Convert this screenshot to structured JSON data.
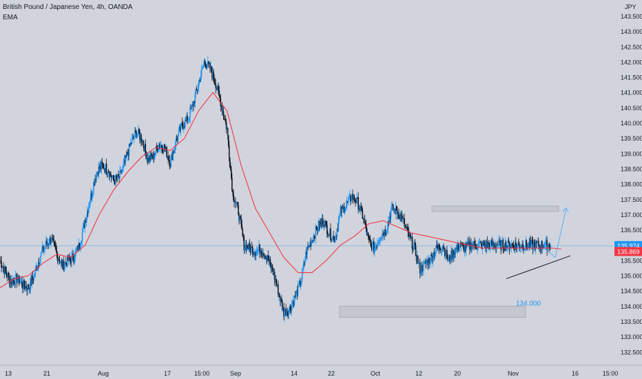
{
  "header": {
    "title": "British Pound / Japanese Yen, 4h, OANDA",
    "indicator": "EMA"
  },
  "axis": {
    "currency": "JPY",
    "y_ticks": [
      "132.500",
      "133.000",
      "133.500",
      "134.000",
      "134.500",
      "135.000",
      "135.500",
      "136.000",
      "136.500",
      "137.000",
      "137.500",
      "138.000",
      "138.500",
      "139.000",
      "139.500",
      "140.000",
      "140.500",
      "141.000",
      "141.500",
      "142.000",
      "142.500",
      "143.000",
      "143.500"
    ],
    "x_ticks": [
      "13",
      "21",
      "Aug",
      "17",
      "15:00",
      "Sep",
      "14",
      "22",
      "Oct",
      "12",
      "20",
      "Nov",
      "16",
      "15:00"
    ]
  },
  "price_labels": {
    "current": "135.974",
    "ema": "135.869"
  },
  "annotations": {
    "support_zone_label": "134.000"
  },
  "colors": {
    "up": "#2196f3",
    "down": "#131722",
    "ema": "#f23645",
    "current_bg": "#2196f3",
    "ema_bg": "#f23645",
    "arrow": "#5ab0ff",
    "zone_fill": "#c2c5cd"
  },
  "chart_data": {
    "type": "line",
    "title": "British Pound / Japanese Yen, 4h, OANDA",
    "series": [
      {
        "name": "",
        "x_index": [
          0,
          8,
          16,
          24,
          32,
          40,
          48,
          56,
          64,
          72,
          80,
          88,
          96,
          104,
          112,
          120,
          128,
          136,
          144,
          152,
          160,
          168,
          176,
          184,
          192,
          200,
          208,
          216,
          224,
          232,
          240,
          248,
          256,
          264,
          272,
          280,
          288,
          296,
          304,
          312,
          320,
          328,
          336,
          344,
          352,
          360,
          368,
          376,
          384,
          392,
          400,
          408,
          416,
          424,
          432,
          440,
          448,
          456,
          464,
          472,
          480,
          488,
          496,
          504,
          512,
          520,
          528,
          536,
          544,
          552,
          560,
          568,
          576,
          584,
          592,
          600,
          608,
          616,
          624,
          632,
          640,
          648,
          656,
          664,
          672,
          680,
          688,
          696,
          704,
          712,
          720,
          728,
          736,
          744,
          752,
          760,
          768,
          776,
          784,
          792
        ],
        "values": [
          135.5,
          135.1,
          134.8,
          134.9,
          134.7,
          134.6,
          135.0,
          135.6,
          136.0,
          136.2,
          135.7,
          135.3,
          135.5,
          135.6,
          136.0,
          136.8,
          137.6,
          138.4,
          138.6,
          138.5,
          138.1,
          138.2,
          138.7,
          139.3,
          139.7,
          139.5,
          138.8,
          138.9,
          139.3,
          139.2,
          138.7,
          139.4,
          139.9,
          140.1,
          140.6,
          141.3,
          142.0,
          141.8,
          141.3,
          140.6,
          139.8,
          137.7,
          137.1,
          136.0,
          135.9,
          135.8,
          135.9,
          135.6,
          135.2,
          134.5,
          133.8,
          133.9,
          134.3,
          134.8,
          135.8,
          136.2,
          136.6,
          136.8,
          136.4,
          136.2,
          137.1,
          137.3,
          137.6,
          137.4,
          136.9,
          136.1,
          135.9,
          136.3,
          136.5,
          137.2,
          137.1,
          136.8,
          136.3,
          135.9,
          135.2,
          135.4,
          135.6,
          135.9,
          136.0,
          135.5,
          135.8,
          136.0,
          135.9,
          136.0,
          136.0,
          136.0,
          136.0,
          136.0,
          136.0,
          136.0,
          136.0,
          136.0,
          136.0,
          136.0,
          136.0,
          136.0,
          136.0,
          136.0,
          136.0,
          136.0
        ]
      },
      {
        "name": "EMA",
        "x_index": [
          0,
          20,
          40,
          60,
          80,
          100,
          120,
          140,
          160,
          180,
          200,
          220,
          240,
          260,
          280,
          300,
          320,
          340,
          360,
          380,
          400,
          420,
          440,
          460,
          480,
          500,
          520,
          540,
          560,
          580,
          600,
          620,
          640,
          660,
          680,
          700,
          720,
          740,
          760,
          780,
          791
        ],
        "values": [
          134.6,
          134.9,
          135.0,
          135.4,
          135.7,
          135.6,
          136.0,
          137.0,
          137.8,
          138.4,
          138.9,
          139.2,
          139.1,
          139.5,
          140.4,
          141.0,
          140.4,
          138.6,
          137.2,
          136.4,
          135.6,
          135.1,
          135.1,
          135.5,
          136.0,
          136.3,
          136.7,
          136.8,
          136.6,
          136.4,
          136.3,
          136.2,
          136.1,
          136.0,
          135.9,
          135.9,
          135.9,
          135.9,
          135.9,
          135.9,
          135.869
        ]
      }
    ],
    "ylim": [
      132.25,
      143.75
    ],
    "current_price": 135.974,
    "ema_last": 135.869
  }
}
